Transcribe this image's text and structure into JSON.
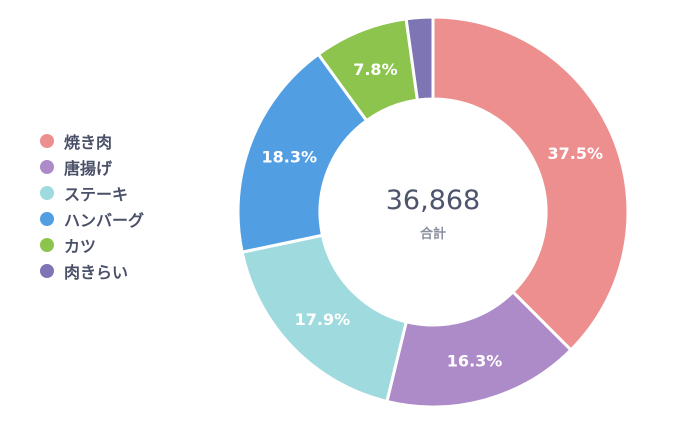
{
  "chart_data": {
    "type": "pie",
    "donut": true,
    "legend_position": "left",
    "total_value": "36,868",
    "total_label": "合計",
    "slices": [
      {
        "label": "焼き肉",
        "percent": 37.5,
        "percent_label": "37.5%",
        "color": "#ec8f8e"
      },
      {
        "label": "唐揚げ",
        "percent": 16.3,
        "percent_label": "16.3%",
        "color": "#ad8ac8"
      },
      {
        "label": "ステーキ",
        "percent": 17.9,
        "percent_label": "17.9%",
        "color": "#9fdade"
      },
      {
        "label": "ハンバーグ",
        "percent": 18.3,
        "percent_label": "18.3%",
        "color": "#529ee3"
      },
      {
        "label": "カツ",
        "percent": 7.8,
        "percent_label": "7.8%",
        "color": "#8cc44e"
      },
      {
        "label": "肉きらい",
        "percent": 2.2,
        "percent_label": "",
        "color": "#7e75b4"
      }
    ]
  }
}
